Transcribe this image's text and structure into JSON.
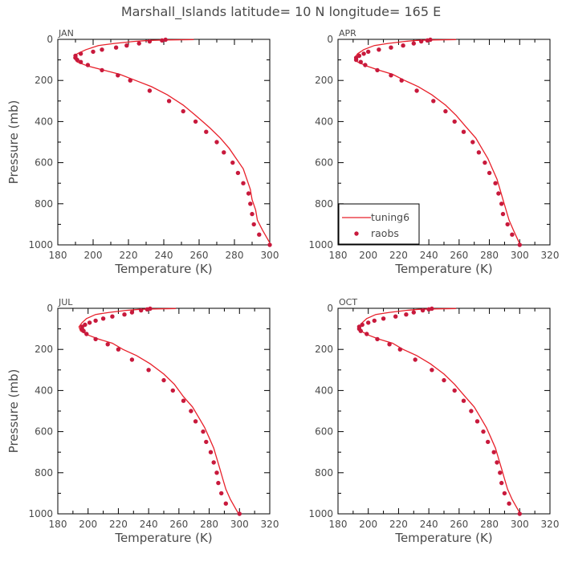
{
  "figure": {
    "title": "Marshall_Islands  latitude= 10 N longitude= 165 E"
  },
  "chart_data": [
    {
      "type": "line",
      "panel_label": "JAN",
      "xlabel": "Temperature (K)",
      "ylabel": "Pressure (mb)",
      "xlim": [
        180,
        300
      ],
      "ylim": [
        1000,
        0
      ],
      "x_ticks": [
        180,
        200,
        220,
        240,
        260,
        280,
        300
      ],
      "y_ticks": [
        0,
        200,
        400,
        600,
        800,
        1000
      ],
      "y_inverted": true,
      "series": [
        {
          "name": "tuning6",
          "kind": "line",
          "color": "#e8202a",
          "points": [
            [
              257,
              1
            ],
            [
              240,
              3
            ],
            [
              232,
              5
            ],
            [
              223,
              10
            ],
            [
              212,
              20
            ],
            [
              203,
              30
            ],
            [
              196,
              50
            ],
            [
              191,
              70
            ],
            [
              189,
              90
            ],
            [
              191,
              110
            ],
            [
              197,
              130
            ],
            [
              206,
              150
            ],
            [
              215,
              170
            ],
            [
              224,
              200
            ],
            [
              233,
              230
            ],
            [
              242,
              270
            ],
            [
              251,
              320
            ],
            [
              258,
              370
            ],
            [
              266,
              430
            ],
            [
              272,
              480
            ],
            [
              277,
              530
            ],
            [
              281,
              580
            ],
            [
              285,
              630
            ],
            [
              287,
              680
            ],
            [
              289,
              730
            ],
            [
              290,
              780
            ],
            [
              292,
              830
            ],
            [
              293,
              880
            ],
            [
              296,
              930
            ],
            [
              300,
              990
            ]
          ]
        },
        {
          "name": "raobs",
          "kind": "scatter",
          "color": "#c8193c",
          "points": [
            [
              241,
              2
            ],
            [
              239,
              5
            ],
            [
              232,
              10
            ],
            [
              226,
              20
            ],
            [
              219,
              30
            ],
            [
              213,
              40
            ],
            [
              205,
              50
            ],
            [
              200,
              60
            ],
            [
              193,
              70
            ],
            [
              190,
              80
            ],
            [
              190,
              90
            ],
            [
              191,
              100
            ],
            [
              193,
              110
            ],
            [
              197,
              125
            ],
            [
              205,
              150
            ],
            [
              214,
              175
            ],
            [
              221,
              200
            ],
            [
              232,
              250
            ],
            [
              243,
              300
            ],
            [
              251,
              350
            ],
            [
              258,
              400
            ],
            [
              264,
              450
            ],
            [
              270,
              500
            ],
            [
              274,
              550
            ],
            [
              279,
              600
            ],
            [
              282,
              650
            ],
            [
              285,
              700
            ],
            [
              288,
              750
            ],
            [
              289,
              800
            ],
            [
              290,
              850
            ],
            [
              291,
              900
            ],
            [
              294,
              950
            ],
            [
              300,
              1000
            ]
          ]
        }
      ]
    },
    {
      "type": "line",
      "panel_label": "APR",
      "xlabel": "Temperature (K)",
      "ylabel": "",
      "xlim": [
        180,
        320
      ],
      "ylim": [
        1000,
        0
      ],
      "x_ticks": [
        180,
        200,
        220,
        240,
        260,
        280,
        300,
        320
      ],
      "y_ticks": [
        0,
        200,
        400,
        600,
        800,
        1000
      ],
      "y_inverted": true,
      "legend": {
        "position": "bottom-left",
        "entries": [
          "tuning6",
          "raobs"
        ]
      },
      "series": [
        {
          "name": "tuning6",
          "kind": "line",
          "color": "#e8202a",
          "points": [
            [
              258,
              1
            ],
            [
              241,
              3
            ],
            [
              232,
              5
            ],
            [
              224,
              10
            ],
            [
              213,
              20
            ],
            [
              204,
              30
            ],
            [
              197,
              50
            ],
            [
              193,
              70
            ],
            [
              191,
              90
            ],
            [
              193,
              110
            ],
            [
              199,
              130
            ],
            [
              207,
              150
            ],
            [
              216,
              170
            ],
            [
              224,
              200
            ],
            [
              233,
              230
            ],
            [
              242,
              270
            ],
            [
              251,
              320
            ],
            [
              258,
              370
            ],
            [
              265,
              430
            ],
            [
              271,
              480
            ],
            [
              275,
              530
            ],
            [
              279,
              580
            ],
            [
              282,
              630
            ],
            [
              285,
              680
            ],
            [
              287,
              730
            ],
            [
              289,
              780
            ],
            [
              291,
              830
            ],
            [
              293,
              880
            ],
            [
              296,
              930
            ],
            [
              300,
              995
            ]
          ]
        },
        {
          "name": "raobs",
          "kind": "scatter",
          "color": "#c8193c",
          "points": [
            [
              241,
              2
            ],
            [
              239,
              5
            ],
            [
              235,
              10
            ],
            [
              230,
              20
            ],
            [
              223,
              30
            ],
            [
              215,
              40
            ],
            [
              207,
              50
            ],
            [
              200,
              60
            ],
            [
              197,
              70
            ],
            [
              194,
              80
            ],
            [
              192,
              90
            ],
            [
              192,
              100
            ],
            [
              195,
              110
            ],
            [
              198,
              125
            ],
            [
              206,
              150
            ],
            [
              215,
              175
            ],
            [
              222,
              200
            ],
            [
              232,
              250
            ],
            [
              243,
              300
            ],
            [
              251,
              350
            ],
            [
              257,
              400
            ],
            [
              263,
              450
            ],
            [
              269,
              500
            ],
            [
              273,
              550
            ],
            [
              277,
              600
            ],
            [
              280,
              650
            ],
            [
              284,
              700
            ],
            [
              286,
              750
            ],
            [
              288,
              800
            ],
            [
              289,
              850
            ],
            [
              292,
              900
            ],
            [
              295,
              950
            ],
            [
              300,
              1000
            ]
          ]
        }
      ]
    },
    {
      "type": "line",
      "panel_label": "JUL",
      "xlabel": "Temperature (K)",
      "ylabel": "Pressure (mb)",
      "xlim": [
        180,
        320
      ],
      "ylim": [
        1000,
        0
      ],
      "x_ticks": [
        180,
        200,
        220,
        240,
        260,
        280,
        300,
        320
      ],
      "y_ticks": [
        0,
        200,
        400,
        600,
        800,
        1000
      ],
      "y_inverted": true,
      "series": [
        {
          "name": "tuning6",
          "kind": "line",
          "color": "#e8202a",
          "points": [
            [
              258,
              1
            ],
            [
              243,
              3
            ],
            [
              234,
              5
            ],
            [
              225,
              10
            ],
            [
              214,
              20
            ],
            [
              205,
              30
            ],
            [
              199,
              50
            ],
            [
              196,
              70
            ],
            [
              194,
              90
            ],
            [
              195,
              110
            ],
            [
              200,
              130
            ],
            [
              207,
              150
            ],
            [
              216,
              170
            ],
            [
              223,
              200
            ],
            [
              232,
              230
            ],
            [
              241,
              270
            ],
            [
              250,
              320
            ],
            [
              257,
              370
            ],
            [
              263,
              430
            ],
            [
              269,
              480
            ],
            [
              273,
              530
            ],
            [
              277,
              580
            ],
            [
              280,
              630
            ],
            [
              283,
              680
            ],
            [
              285,
              730
            ],
            [
              287,
              780
            ],
            [
              289,
              830
            ],
            [
              291,
              880
            ],
            [
              294,
              930
            ],
            [
              299,
              995
            ]
          ]
        },
        {
          "name": "raobs",
          "kind": "scatter",
          "color": "#c8193c",
          "points": [
            [
              241,
              2
            ],
            [
              239,
              5
            ],
            [
              235,
              10
            ],
            [
              229,
              20
            ],
            [
              224,
              30
            ],
            [
              216,
              40
            ],
            [
              210,
              50
            ],
            [
              205,
              60
            ],
            [
              201,
              70
            ],
            [
              198,
              80
            ],
            [
              196,
              90
            ],
            [
              196,
              100
            ],
            [
              197,
              110
            ],
            [
              199,
              125
            ],
            [
              205,
              150
            ],
            [
              213,
              175
            ],
            [
              220,
              200
            ],
            [
              229,
              250
            ],
            [
              240,
              300
            ],
            [
              250,
              350
            ],
            [
              256,
              400
            ],
            [
              263,
              450
            ],
            [
              268,
              500
            ],
            [
              271,
              550
            ],
            [
              276,
              600
            ],
            [
              278,
              650
            ],
            [
              281,
              700
            ],
            [
              283,
              750
            ],
            [
              285,
              800
            ],
            [
              286,
              850
            ],
            [
              288,
              900
            ],
            [
              291,
              950
            ],
            [
              300,
              1000
            ]
          ]
        }
      ]
    },
    {
      "type": "line",
      "panel_label": "OCT",
      "xlabel": "Temperature (K)",
      "ylabel": "",
      "xlim": [
        180,
        320
      ],
      "ylim": [
        1000,
        0
      ],
      "x_ticks": [
        180,
        200,
        220,
        240,
        260,
        280,
        300,
        320
      ],
      "y_ticks": [
        0,
        200,
        400,
        600,
        800,
        1000
      ],
      "y_inverted": true,
      "series": [
        {
          "name": "tuning6",
          "kind": "line",
          "color": "#e8202a",
          "points": [
            [
              258,
              1
            ],
            [
              242,
              3
            ],
            [
              233,
              5
            ],
            [
              225,
              10
            ],
            [
              214,
              20
            ],
            [
              205,
              30
            ],
            [
              199,
              50
            ],
            [
              196,
              70
            ],
            [
              194,
              90
            ],
            [
              195,
              110
            ],
            [
              200,
              130
            ],
            [
              207,
              150
            ],
            [
              216,
              170
            ],
            [
              223,
              200
            ],
            [
              232,
              230
            ],
            [
              241,
              270
            ],
            [
              250,
              320
            ],
            [
              257,
              370
            ],
            [
              264,
              430
            ],
            [
              270,
              480
            ],
            [
              274,
              530
            ],
            [
              278,
              580
            ],
            [
              281,
              630
            ],
            [
              284,
              680
            ],
            [
              286,
              730
            ],
            [
              288,
              780
            ],
            [
              290,
              830
            ],
            [
              292,
              880
            ],
            [
              295,
              930
            ],
            [
              300,
              995
            ]
          ]
        },
        {
          "name": "raobs",
          "kind": "scatter",
          "color": "#c8193c",
          "points": [
            [
              242,
              2
            ],
            [
              240,
              5
            ],
            [
              236,
              10
            ],
            [
              230,
              20
            ],
            [
              225,
              30
            ],
            [
              218,
              40
            ],
            [
              210,
              50
            ],
            [
              204,
              60
            ],
            [
              200,
              70
            ],
            [
              196,
              80
            ],
            [
              194,
              90
            ],
            [
              194,
              100
            ],
            [
              195,
              110
            ],
            [
              199,
              125
            ],
            [
              206,
              150
            ],
            [
              214,
              175
            ],
            [
              221,
              200
            ],
            [
              231,
              250
            ],
            [
              242,
              300
            ],
            [
              250,
              350
            ],
            [
              257,
              400
            ],
            [
              263,
              450
            ],
            [
              268,
              500
            ],
            [
              272,
              550
            ],
            [
              276,
              600
            ],
            [
              279,
              650
            ],
            [
              283,
              700
            ],
            [
              285,
              750
            ],
            [
              287,
              800
            ],
            [
              288,
              850
            ],
            [
              290,
              900
            ],
            [
              293,
              950
            ],
            [
              300,
              1000
            ]
          ]
        }
      ]
    }
  ]
}
